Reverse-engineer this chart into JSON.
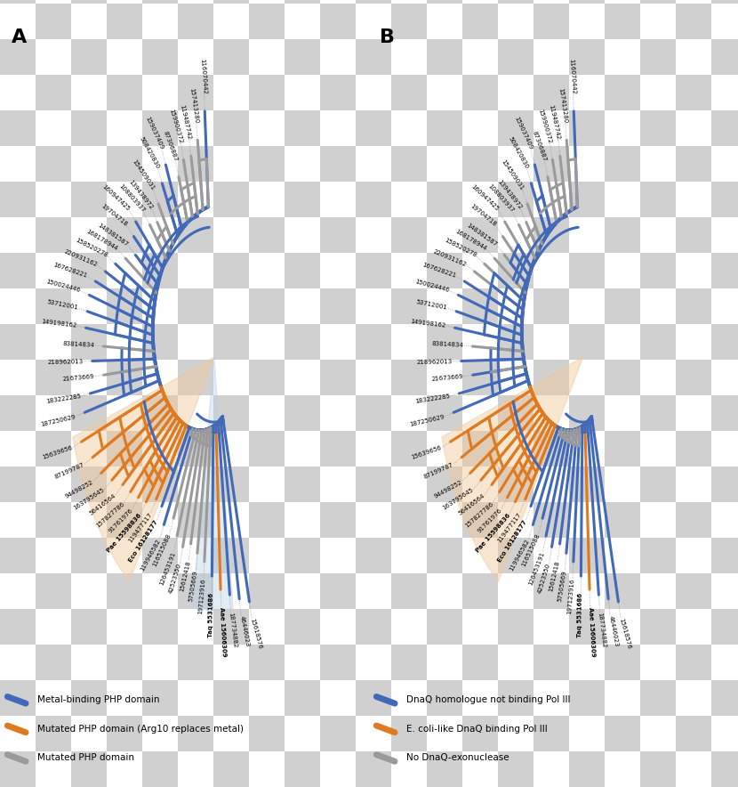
{
  "blue": "#4169b8",
  "orange": "#e07a20",
  "gray": "#9a9a9a",
  "light_orange": "#f0c898",
  "light_blue": "#b8d0e8",
  "legend_A": [
    {
      "color": "#4169b8",
      "label": "Metal-binding PHP domain"
    },
    {
      "color": "#e07a20",
      "label": "Mutated PHP domain (Arg10 replaces metal)"
    },
    {
      "color": "#9a9a9a",
      "label": "Mutated PHP domain"
    }
  ],
  "legend_B": [
    {
      "color": "#4169b8",
      "label": "DnaQ homologue not binding Pol III"
    },
    {
      "color": "#e07a20",
      "label": "E. coli-like DnaQ binding Pol III"
    },
    {
      "color": "#9a9a9a",
      "label": "No DnaQ-exonuclease"
    }
  ]
}
